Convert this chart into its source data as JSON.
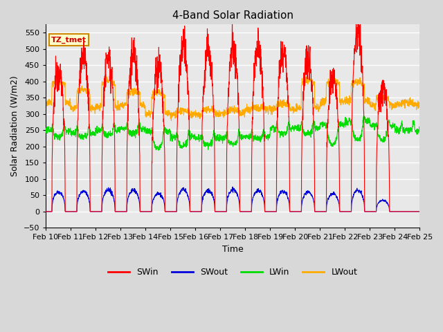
{
  "title": "4-Band Solar Radiation",
  "xlabel": "Time",
  "ylabel": "Solar Radiation (W/m2)",
  "ylim": [
    -50,
    575
  ],
  "yticks": [
    -50,
    0,
    50,
    100,
    150,
    200,
    250,
    300,
    350,
    400,
    450,
    500,
    550
  ],
  "start_day": 10,
  "n_days": 15,
  "colors": {
    "SWin": "#ff0000",
    "SWout": "#0000dd",
    "LWin": "#00dd00",
    "LWout": "#ffaa00"
  },
  "bg_color": "#d8d8d8",
  "plot_bg_color": "#e8e8e8",
  "annotation_label": "TZ_tmet",
  "annotation_bg": "#ffffcc",
  "annotation_border": "#cc8800",
  "annotation_text_color": "#cc0000",
  "SWin_peaks": [
    435,
    480,
    480,
    485,
    440,
    505,
    495,
    505,
    505,
    488,
    465,
    410,
    550,
    380,
    0
  ],
  "SWout_peaks": [
    60,
    62,
    65,
    65,
    55,
    67,
    65,
    67,
    65,
    62,
    60,
    55,
    65,
    35,
    0
  ],
  "LWin_night": [
    250,
    240,
    250,
    255,
    245,
    230,
    225,
    228,
    230,
    255,
    258,
    268,
    278,
    263,
    250
  ],
  "LWin_midday": [
    230,
    230,
    235,
    240,
    195,
    200,
    205,
    205,
    225,
    240,
    240,
    205,
    220,
    220,
    250
  ],
  "LWout_night": [
    335,
    318,
    322,
    328,
    300,
    298,
    298,
    302,
    315,
    315,
    318,
    338,
    342,
    328,
    330
  ],
  "LWout_peak": [
    400,
    375,
    403,
    370,
    365,
    310,
    312,
    312,
    318,
    330,
    405,
    402,
    398,
    348,
    335
  ],
  "pts_per_day": 144
}
